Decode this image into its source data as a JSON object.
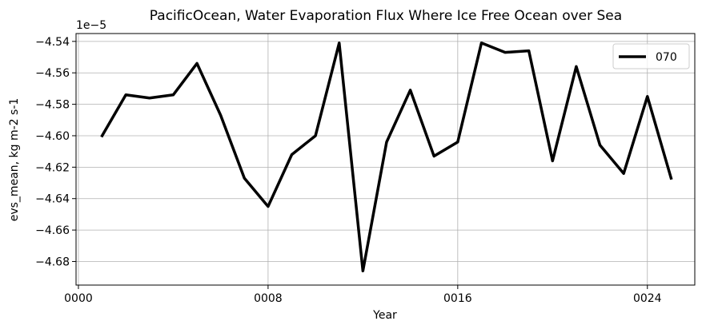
{
  "chart_data": {
    "type": "line",
    "title": "PacificOcean, Water Evaporation Flux Where Ice Free Ocean over Sea",
    "xlabel": "Year",
    "ylabel": "evs_mean, kg m-2 s-1",
    "y_offset_label": "1e−5",
    "x_ticks": [
      0,
      8,
      16,
      24
    ],
    "x_tick_labels": [
      "0000",
      "0008",
      "0016",
      "0024"
    ],
    "y_ticks": [
      -4.68,
      -4.66,
      -4.64,
      -4.62,
      -4.6,
      -4.58,
      -4.56,
      -4.54
    ],
    "y_tick_labels": [
      "−4.68",
      "−4.66",
      "−4.64",
      "−4.62",
      "−4.60",
      "−4.58",
      "−4.56",
      "−4.54"
    ],
    "xlim": [
      -0.1,
      26.0
    ],
    "ylim": [
      -4.695,
      -4.535
    ],
    "grid": true,
    "legend_position": "upper right",
    "series": [
      {
        "name": "070",
        "color": "#000000",
        "x": [
          1,
          2,
          3,
          4,
          5,
          6,
          7,
          8,
          9,
          10,
          11,
          12,
          13,
          14,
          15,
          16,
          17,
          18,
          19,
          20,
          21,
          22,
          23,
          24,
          25
        ],
        "y": [
          -4.6,
          -4.574,
          -4.576,
          -4.574,
          -4.554,
          -4.587,
          -4.627,
          -4.645,
          -4.612,
          -4.6,
          -4.541,
          -4.686,
          -4.604,
          -4.571,
          -4.613,
          -4.604,
          -4.541,
          -4.547,
          -4.546,
          -4.616,
          -4.556,
          -4.606,
          -4.624,
          -4.575,
          -4.627
        ]
      }
    ]
  }
}
